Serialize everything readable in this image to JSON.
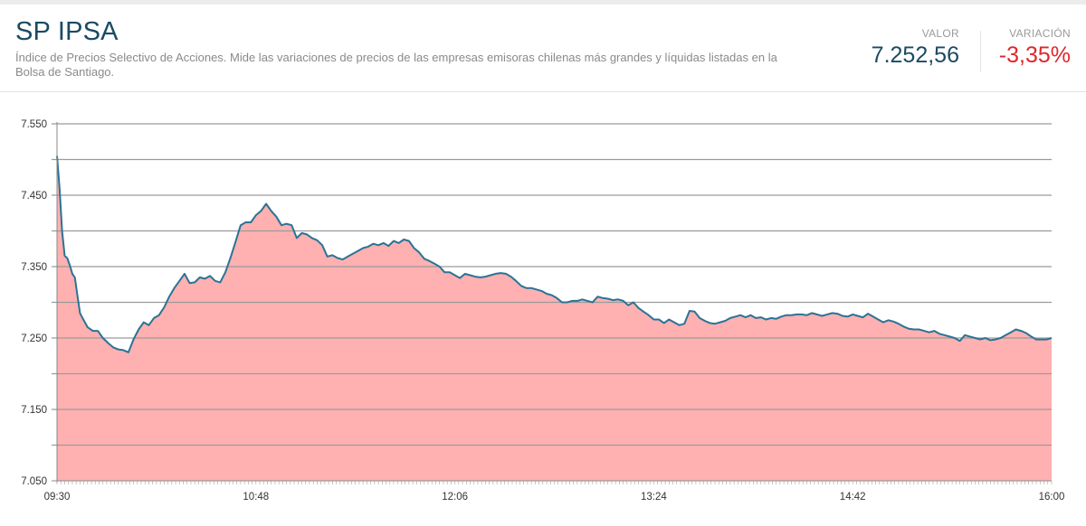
{
  "header": {
    "title": "SP IPSA",
    "description": "Índice de Precios Selectivo de Acciones. Mide las variaciones de precios de las empresas emisoras chilenas más grandes y líquidas listadas en la Bolsa de Santiago.",
    "valor_label": "VALOR",
    "valor": "7.252,56",
    "variacion_label": "VARIACIÓN",
    "variacion": "-3,35%"
  },
  "colors": {
    "title": "#1b4a63",
    "negative": "#e0272c",
    "line": "#2a7396",
    "fill": "#ffb0b1",
    "grid": "#9a9a9a"
  },
  "chart_data": {
    "type": "area",
    "title": "SP IPSA",
    "xlabel": "",
    "ylabel": "",
    "ylim": [
      7050,
      7550
    ],
    "yticks": [
      7050,
      7150,
      7250,
      7350,
      7450,
      7550
    ],
    "ytick_labels": [
      "7.050",
      "7.150",
      "7.250",
      "7.350",
      "7.450",
      "7.550"
    ],
    "minor_gridlines": [
      7100,
      7200,
      7300,
      7400,
      7500
    ],
    "xlim": [
      "09:30",
      "16:00"
    ],
    "xticks": [
      "09:30",
      "10:48",
      "12:06",
      "13:24",
      "14:42",
      "16:00"
    ],
    "grid": true,
    "legend": false,
    "series": [
      {
        "name": "SP IPSA",
        "x_minutes_from_open": [
          0,
          1,
          2,
          3,
          4,
          5,
          6,
          7,
          8,
          9,
          10,
          12,
          14,
          16,
          18,
          20,
          22,
          24,
          26,
          28,
          30,
          32,
          34,
          36,
          38,
          40,
          42,
          44,
          46,
          48,
          50,
          52,
          54,
          56,
          58,
          60,
          62,
          64,
          66,
          68,
          70,
          72,
          74,
          76,
          78,
          80,
          82,
          84,
          86,
          88,
          90,
          92,
          94,
          96,
          98,
          100,
          102,
          104,
          106,
          108,
          110,
          112,
          114,
          116,
          118,
          120,
          122,
          124,
          126,
          128,
          130,
          132,
          134,
          136,
          138,
          140,
          142,
          144,
          146,
          148,
          150,
          152,
          154,
          156,
          158,
          160,
          162,
          164,
          166,
          168,
          170,
          172,
          174,
          176,
          178,
          180,
          182,
          184,
          186,
          188,
          190,
          192,
          194,
          196,
          198,
          200,
          202,
          204,
          206,
          208,
          210,
          212,
          214,
          216,
          218,
          220,
          222,
          224,
          226,
          228,
          230,
          232,
          234,
          236,
          238,
          240,
          242,
          244,
          246,
          248,
          250,
          252,
          254,
          256,
          258,
          260,
          262,
          264,
          266,
          268,
          270,
          272,
          274,
          276,
          278,
          280,
          282,
          284,
          286,
          288,
          290,
          292,
          294,
          296,
          298,
          300,
          302,
          304,
          306,
          308,
          310,
          312,
          314,
          316,
          318,
          320,
          322,
          324,
          326,
          328,
          330,
          332,
          334,
          336,
          338,
          340,
          342,
          344,
          346,
          348,
          350,
          352,
          354,
          356,
          358,
          360,
          362,
          364,
          366,
          368,
          370,
          372,
          374,
          376,
          378,
          380,
          382,
          384,
          386,
          388,
          390
        ],
        "values": [
          7505,
          7460,
          7400,
          7365,
          7362,
          7352,
          7340,
          7335,
          7310,
          7285,
          7278,
          7265,
          7260,
          7260,
          7250,
          7243,
          7237,
          7234,
          7233,
          7230,
          7248,
          7262,
          7272,
          7268,
          7278,
          7282,
          7293,
          7308,
          7320,
          7330,
          7340,
          7327,
          7328,
          7335,
          7333,
          7337,
          7330,
          7328,
          7342,
          7362,
          7385,
          7408,
          7412,
          7412,
          7422,
          7428,
          7438,
          7428,
          7420,
          7408,
          7410,
          7408,
          7390,
          7397,
          7395,
          7390,
          7387,
          7380,
          7364,
          7366,
          7362,
          7360,
          7364,
          7368,
          7372,
          7376,
          7378,
          7382,
          7380,
          7383,
          7379,
          7386,
          7383,
          7388,
          7386,
          7376,
          7370,
          7361,
          7358,
          7354,
          7350,
          7342,
          7342,
          7338,
          7334,
          7340,
          7338,
          7336,
          7335,
          7336,
          7338,
          7340,
          7341,
          7340,
          7336,
          7330,
          7323,
          7320,
          7320,
          7318,
          7316,
          7312,
          7310,
          7306,
          7300,
          7300,
          7302,
          7302,
          7304,
          7302,
          7300,
          7308,
          7306,
          7305,
          7303,
          7304,
          7302,
          7296,
          7300,
          7292,
          7287,
          7282,
          7276,
          7276,
          7271,
          7276,
          7272,
          7268,
          7270,
          7288,
          7287,
          7278,
          7274,
          7271,
          7270,
          7272,
          7274,
          7278,
          7280,
          7282,
          7279,
          7282,
          7278,
          7279,
          7276,
          7278,
          7277,
          7280,
          7282,
          7282,
          7283,
          7283,
          7282,
          7285,
          7283,
          7281,
          7283,
          7285,
          7284,
          7281,
          7280,
          7283,
          7281,
          7279,
          7284,
          7280,
          7276,
          7272,
          7275,
          7273,
          7270,
          7266,
          7263,
          7262,
          7262,
          7260,
          7258,
          7260,
          7256,
          7254,
          7252,
          7250,
          7246,
          7254,
          7252,
          7250,
          7248,
          7250,
          7247,
          7248,
          7250,
          7254,
          7258,
          7262,
          7260,
          7257,
          7252,
          7248,
          7248,
          7248,
          7250
        ]
      }
    ]
  }
}
